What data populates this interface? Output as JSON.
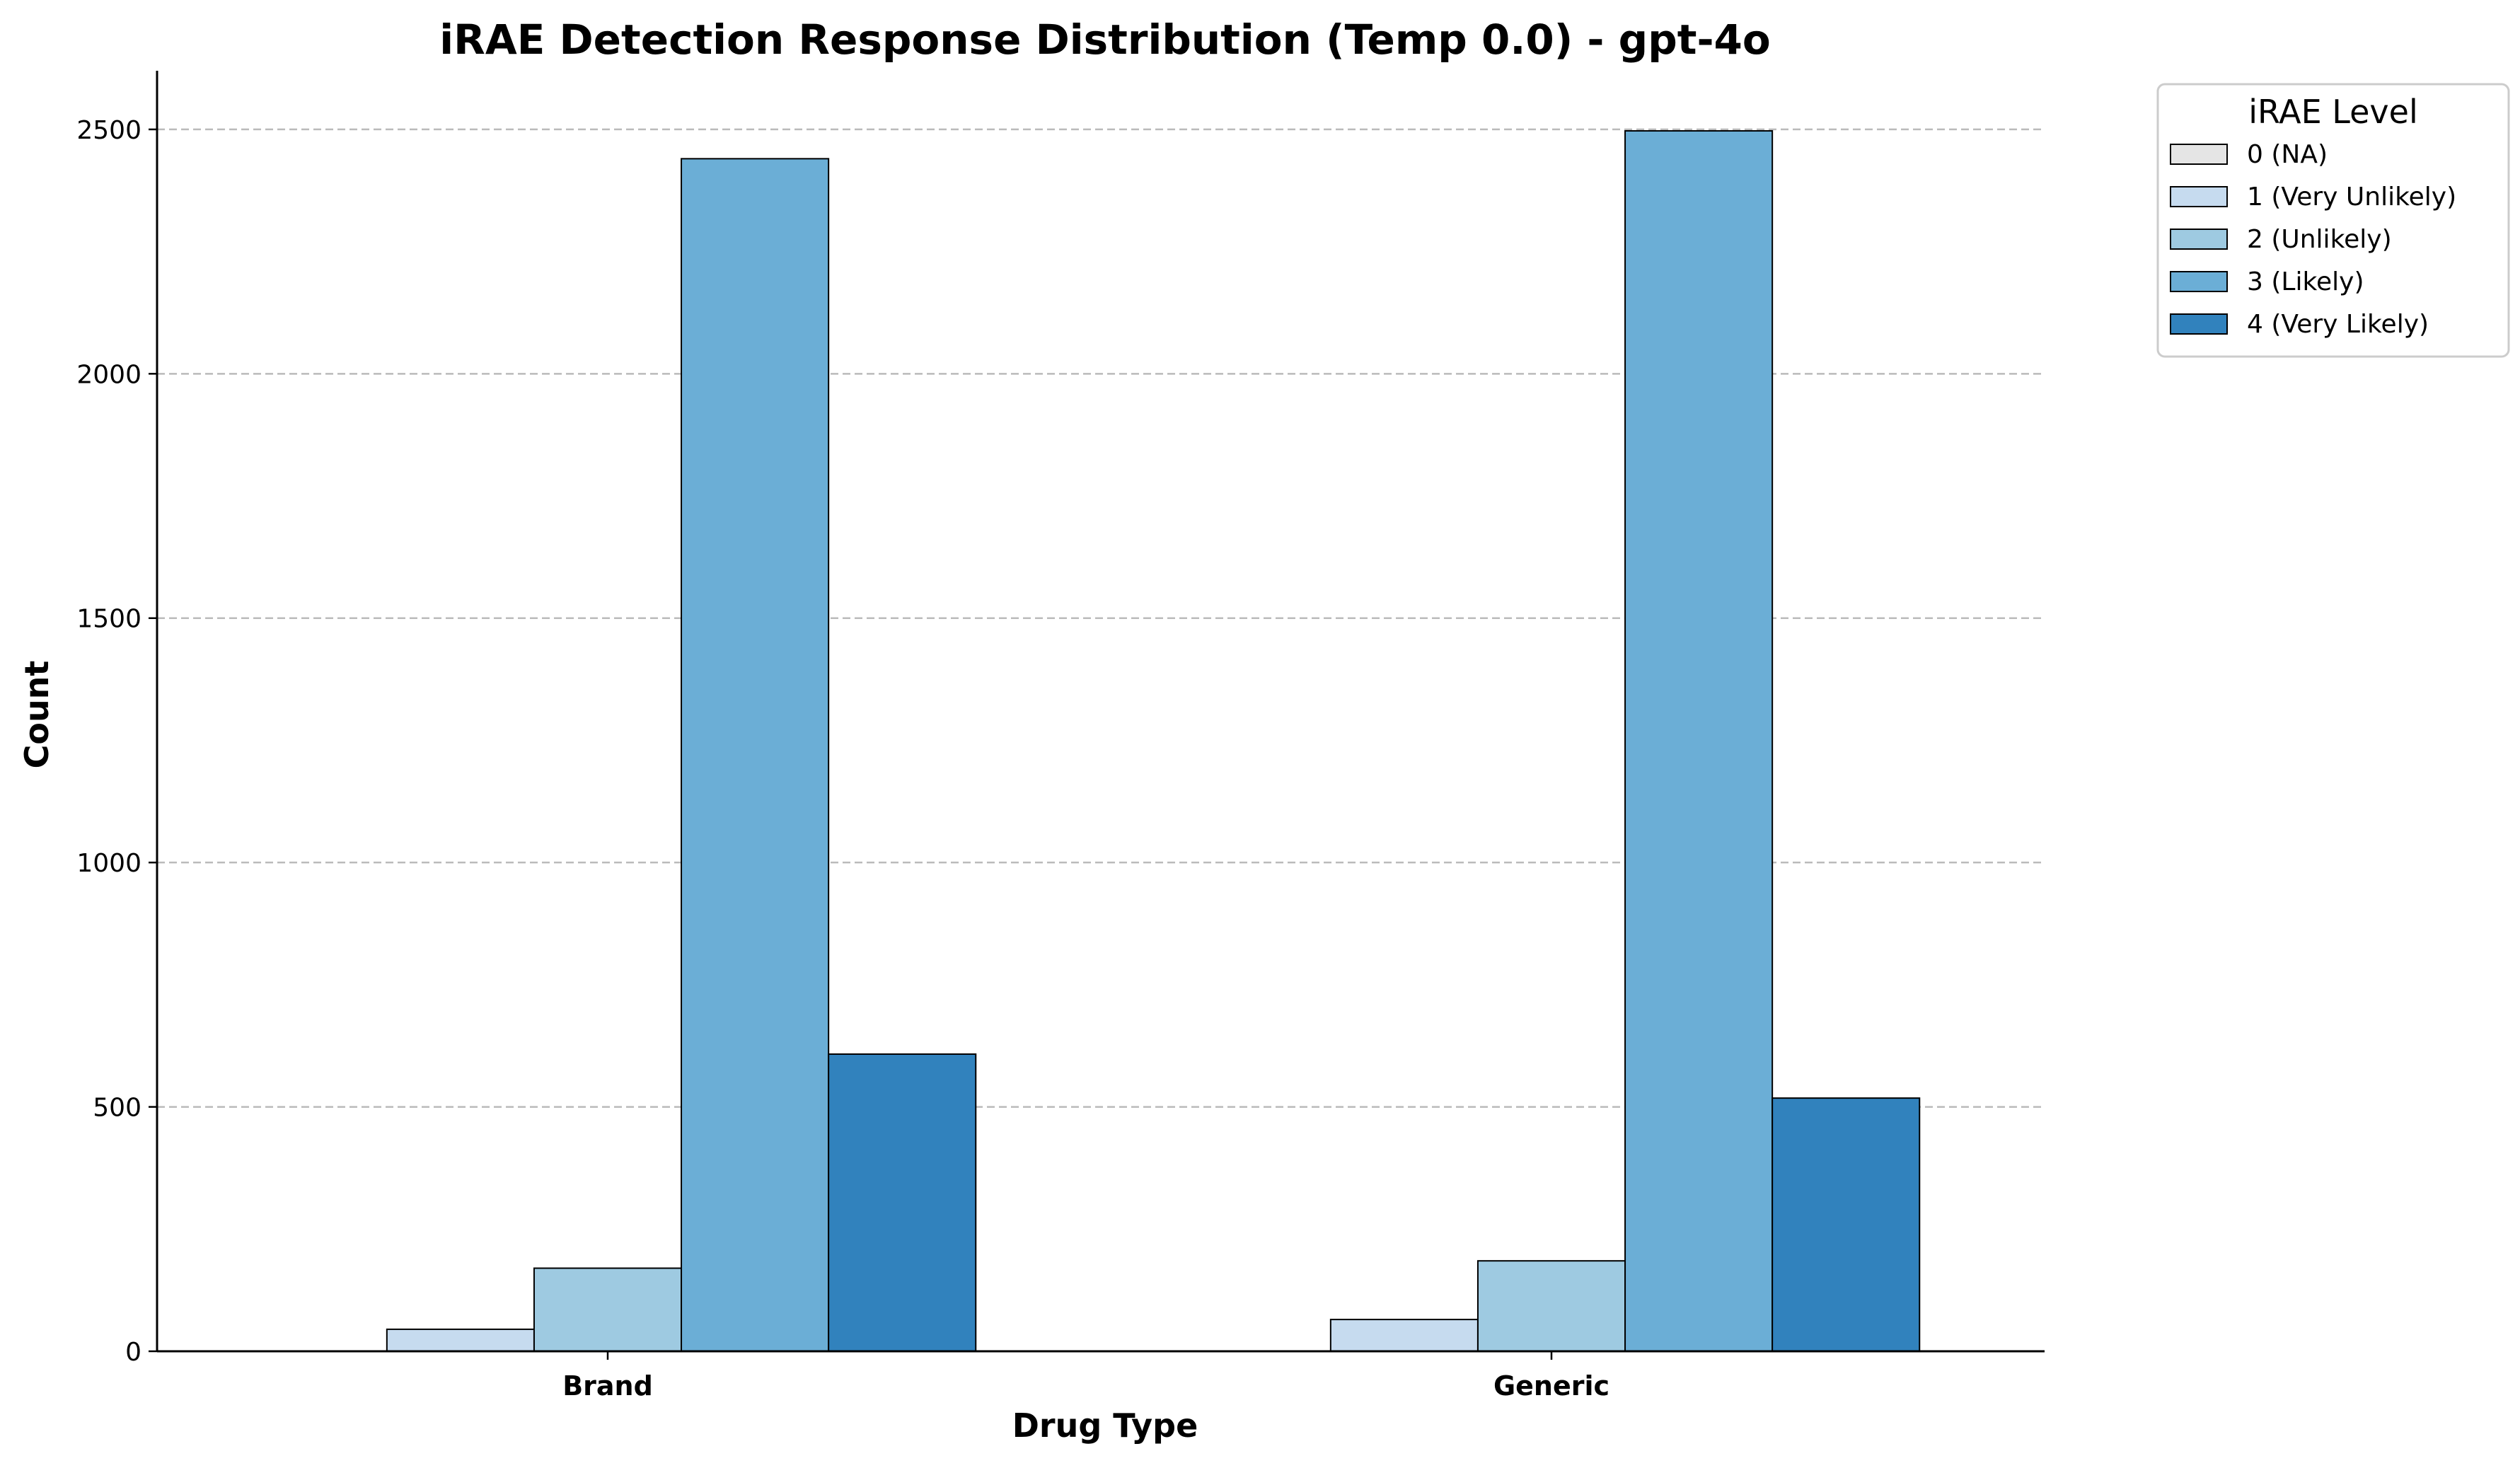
{
  "chart_data": {
    "type": "bar",
    "title": "iRAE Detection Response Distribution (Temp 0.0) - gpt-4o",
    "xlabel": "Drug Type",
    "ylabel": "Count",
    "categories": [
      "Brand",
      "Generic"
    ],
    "ylim": [
      0,
      2620
    ],
    "yticks": [
      0,
      500,
      1000,
      1500,
      2000,
      2500
    ],
    "grid": {
      "axis": "y",
      "style": "dashed",
      "color": "#bbbbbb"
    },
    "legend": {
      "title": "iRAE Level",
      "placement": "upper right, outside plot"
    },
    "series": [
      {
        "name": "0 (NA)",
        "color": "#e5e5e5",
        "values": [
          0,
          0
        ]
      },
      {
        "name": "1 (Very Unlikely)",
        "color": "#c6dbef",
        "values": [
          45,
          65
        ]
      },
      {
        "name": "2 (Unlikely)",
        "color": "#9ecae1",
        "values": [
          170,
          185
        ]
      },
      {
        "name": "3 (Likely)",
        "color": "#6baed6",
        "values": [
          2440,
          2497
        ]
      },
      {
        "name": "4 (Very Likely)",
        "color": "#3182bd",
        "values": [
          608,
          518
        ]
      }
    ]
  }
}
